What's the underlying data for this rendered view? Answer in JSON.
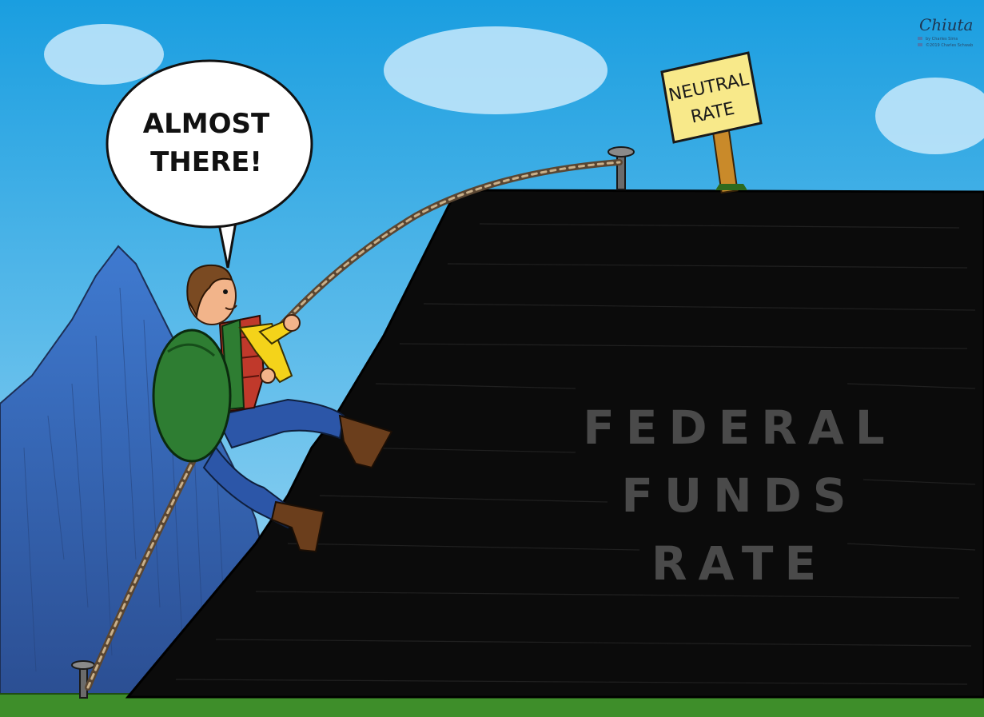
{
  "speech_bubble": {
    "line1": "ALMOST",
    "line2": "THERE!"
  },
  "sign": {
    "line1": "NEUTRAL",
    "line2": "RATE"
  },
  "rock_label": {
    "line1": "FEDERAL",
    "line2": "FUNDS",
    "line3": "RATE"
  },
  "signature": {
    "name": "Chiuta",
    "credit1": "by Charles Sims",
    "credit2": "©2019 Charles Schwab"
  },
  "colors": {
    "sky_top": "#1a9ee0",
    "sky_bottom": "#9ad8f2",
    "rock": "#0b0b0b",
    "mountain": "#3a6fb8",
    "grass": "#3e8e2a",
    "sign": "#f8e98a",
    "backpack": "#2e7d32",
    "sleeve": "#f4d31a",
    "jeans": "#2c56a8"
  }
}
